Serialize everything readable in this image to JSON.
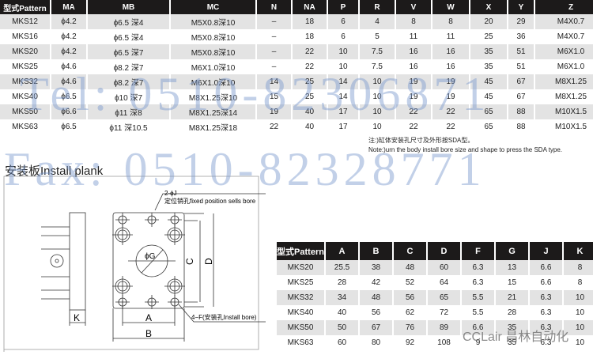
{
  "top_table": {
    "headers": [
      "型式Pattern",
      "MA",
      "MB",
      "MC",
      "N",
      "NA",
      "P",
      "R",
      "V",
      "W",
      "X",
      "Y",
      "Z"
    ],
    "rows": [
      [
        "MKS12",
        "ϕ4.2",
        "ϕ6.5 深4",
        "M5X0.8深10",
        "–",
        "18",
        "6",
        "4",
        "8",
        "8",
        "20",
        "29",
        "M4X0.7"
      ],
      [
        "MKS16",
        "ϕ4.2",
        "ϕ6.5 深4",
        "M5X0.8深10",
        "–",
        "18",
        "6",
        "5",
        "11",
        "11",
        "25",
        "36",
        "M4X0.7"
      ],
      [
        "MKS20",
        "ϕ4.2",
        "ϕ6.5 深7",
        "M5X0.8深10",
        "–",
        "22",
        "10",
        "7.5",
        "16",
        "16",
        "35",
        "51",
        "M6X1.0"
      ],
      [
        "MKS25",
        "ϕ4.6",
        "ϕ8.2 深7",
        "M6X1.0深10",
        "–",
        "22",
        "10",
        "7.5",
        "16",
        "16",
        "35",
        "51",
        "M6X1.0"
      ],
      [
        "MKS32",
        "ϕ4.6",
        "ϕ8.2 深7",
        "M6X1.0深10",
        "14",
        "25",
        "14",
        "10",
        "19",
        "19",
        "45",
        "67",
        "M8X1.25"
      ],
      [
        "MKS40",
        "ϕ6.5",
        "ϕ10 深7",
        "M8X1.25深10",
        "15",
        "25",
        "14",
        "10",
        "19",
        "19",
        "45",
        "67",
        "M8X1.25"
      ],
      [
        "MKS50",
        "ϕ6.6",
        "ϕ11 深8",
        "M8X1.25深14",
        "19",
        "40",
        "17",
        "10",
        "22",
        "22",
        "65",
        "88",
        "M10X1.5"
      ],
      [
        "MKS63",
        "ϕ6.5",
        "ϕ11 深10.5",
        "M8X1.25深18",
        "22",
        "40",
        "17",
        "10",
        "22",
        "22",
        "65",
        "88",
        "M10X1.5"
      ]
    ]
  },
  "note_cn": "注:)缸体安装孔尺寸及外形按SDA型。",
  "note_en": "Note:)urn the body install bore size and shape to press the SDA type.",
  "section_title": "安装板Install plank",
  "drawing": {
    "pin_label": "2-ϕJ",
    "pin_tol": "+0.18 / +0.08",
    "pin_desc": "定位销孔fixed position sells bore",
    "bore_label": "4−F(安装孔Install bore)",
    "dims": {
      "a": "A",
      "b": "B",
      "c": "C",
      "d": "D",
      "g": "ϕG",
      "k": "K"
    }
  },
  "bottom_table": {
    "headers": [
      "型式Pattern",
      "A",
      "B",
      "C",
      "D",
      "F",
      "G",
      "J",
      "K"
    ],
    "rows": [
      [
        "MKS20",
        "25.5",
        "38",
        "48",
        "60",
        "6.3",
        "13",
        "6.6",
        "8"
      ],
      [
        "MKS25",
        "28",
        "42",
        "52",
        "64",
        "6.3",
        "15",
        "6.6",
        "8"
      ],
      [
        "MKS32",
        "34",
        "48",
        "56",
        "65",
        "5.5",
        "21",
        "6.3",
        "10"
      ],
      [
        "MKS40",
        "40",
        "56",
        "62",
        "72",
        "5.5",
        "28",
        "6.3",
        "10"
      ],
      [
        "MKS50",
        "50",
        "67",
        "76",
        "89",
        "6.6",
        "35",
        "6.3",
        "10"
      ],
      [
        "MKS63",
        "60",
        "80",
        "92",
        "108",
        "9",
        "35",
        "6.3",
        "10"
      ]
    ]
  },
  "watermarks": {
    "tel": "Tel: 0510-82306871",
    "fax": "Fax: 0510-82328771"
  },
  "logo": "CCLair 昌林自动化",
  "colors": {
    "header_bg": "#1c1a1a",
    "row_alt": "#e3e3e3",
    "watermark": "#7896cd"
  }
}
